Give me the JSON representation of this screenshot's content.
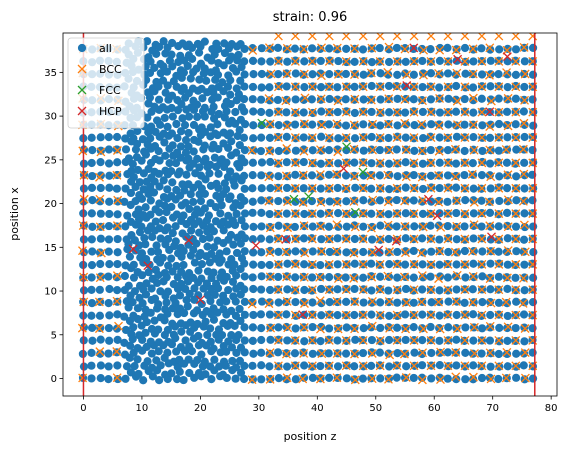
{
  "chart_data": {
    "type": "scatter",
    "title": "strain: 0.96",
    "xlabel": "position z",
    "ylabel": "position x",
    "xlim": [
      -3.5,
      81
    ],
    "ylim": [
      -2,
      39.5
    ],
    "xticks": [
      0,
      10,
      20,
      30,
      40,
      50,
      60,
      70,
      80
    ],
    "yticks": [
      0,
      5,
      10,
      15,
      20,
      25,
      30,
      35
    ],
    "grid": false,
    "legend_position": "top-left",
    "vertical_lines": [
      0,
      77.2
    ],
    "series": [
      {
        "name": "all",
        "marker": "circle",
        "color": "#1f77b4"
      },
      {
        "name": "BCC",
        "marker": "x",
        "color": "#ff7f0e"
      },
      {
        "name": "FCC",
        "marker": "x",
        "color": "#2ca02c"
      },
      {
        "name": "HCP",
        "marker": "x",
        "color": "#d62728"
      }
    ],
    "all_points": {
      "z_range": [
        0,
        78
      ],
      "x_range": [
        0,
        38
      ],
      "z_step": 1.45,
      "x_step": 1.45,
      "dense_band": [
        7,
        27
      ]
    },
    "bcc_points": {
      "left_band": [
        0,
        7
      ],
      "dense_band_edges": [
        27,
        30
      ],
      "right_band": [
        30,
        77
      ],
      "z_step": 2.9,
      "x_step": 2.9
    },
    "fcc_points": [
      [
        30.5,
        29.2
      ],
      [
        36,
        20.5
      ],
      [
        38.5,
        20.8
      ],
      [
        45,
        26.5
      ],
      [
        46.5,
        19
      ],
      [
        47.8,
        23.6
      ]
    ],
    "hcp_points": [
      [
        8.5,
        14.8
      ],
      [
        11,
        12.9
      ],
      [
        18,
        15.8
      ],
      [
        20,
        9
      ],
      [
        29.5,
        15.2
      ],
      [
        34.6,
        15.9
      ],
      [
        37.5,
        7.3
      ],
      [
        44.5,
        24
      ],
      [
        50.5,
        14.7
      ],
      [
        53.5,
        15.7
      ],
      [
        55.3,
        33.5
      ],
      [
        56.5,
        37.8
      ],
      [
        59,
        20.5
      ],
      [
        60.5,
        18.6
      ],
      [
        64,
        36.5
      ],
      [
        69.5,
        30.5
      ],
      [
        69.8,
        16.2
      ],
      [
        72.5,
        36.8
      ]
    ]
  }
}
